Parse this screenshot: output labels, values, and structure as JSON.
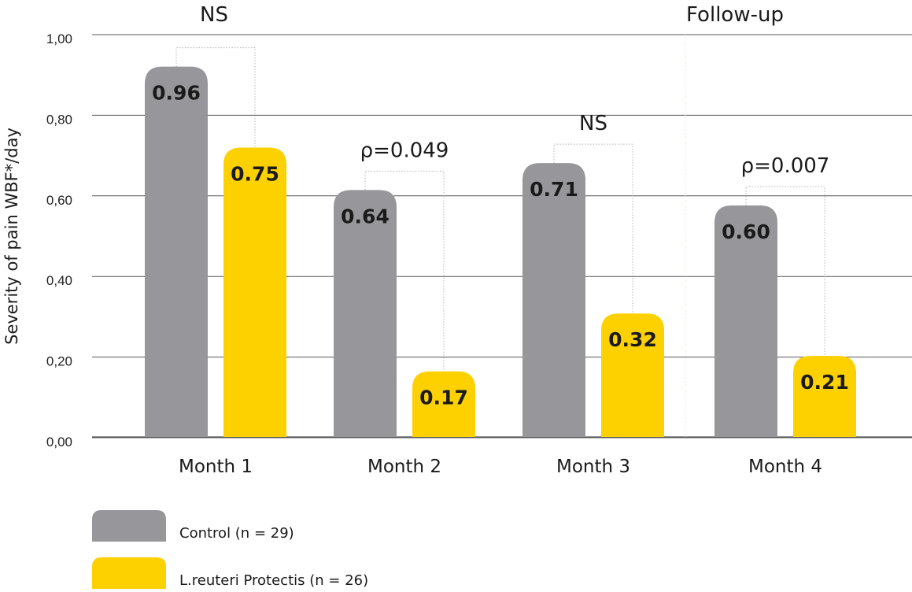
{
  "chart_data": {
    "type": "bar",
    "ylabel": "Severity of pain WBF*/day",
    "y_tick_labels": [
      "1,00",
      "0,80",
      "0,60",
      "0,40",
      "0,20",
      "0,00"
    ],
    "categories": [
      "Month 1",
      "Month 2",
      "Month 3",
      "Month 4"
    ],
    "series": [
      {
        "name": "Control (n = 29)",
        "color": "#97969b",
        "values": [
          0.96,
          0.64,
          0.71,
          0.6
        ],
        "labels": [
          "0.96",
          "0.64",
          "0.71",
          "0.60"
        ]
      },
      {
        "name": "L.reuteri Protectis (n = 26)",
        "color": "#fdd000",
        "values": [
          0.75,
          0.17,
          0.32,
          0.21
        ],
        "labels": [
          "0.75",
          "0.17",
          "0.32",
          "0.21"
        ]
      }
    ],
    "annotations": [
      "NS",
      "ρ=0.049",
      "NS",
      "ρ=0.007"
    ],
    "follow_up_label": "Follow-up",
    "grid": true,
    "legend_position": "bottom-left"
  }
}
